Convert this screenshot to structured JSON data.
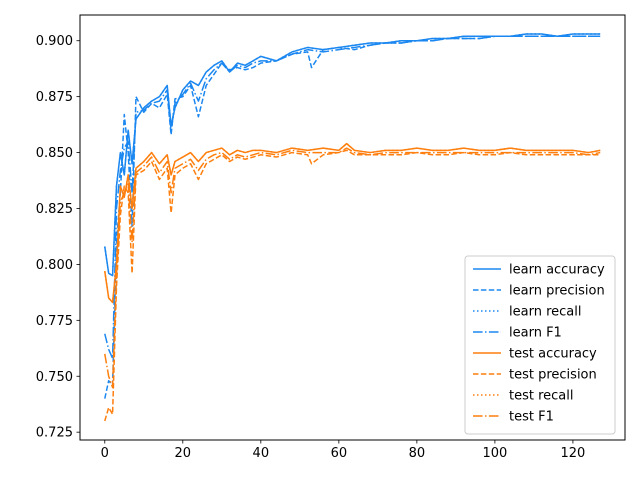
{
  "chart_data": {
    "type": "line",
    "title": "",
    "xlabel": "",
    "ylabel": "",
    "xlim": [
      -6.35,
      133.35
    ],
    "ylim": [
      0.7215,
      0.9115
    ],
    "xticks": [
      0,
      20,
      40,
      60,
      80,
      100,
      120
    ],
    "yticks": [
      0.725,
      0.75,
      0.775,
      0.8,
      0.825,
      0.85,
      0.875,
      0.9
    ],
    "grid": false,
    "legend_position": "lower-right",
    "colors": {
      "learn": "#1b87f0",
      "test": "#ff7f0e"
    },
    "series": [
      {
        "name": "learn accuracy",
        "group": "learn",
        "dash": "solid",
        "x": [
          0,
          1,
          2,
          3,
          4,
          5,
          6,
          7,
          8,
          10,
          12,
          14,
          16,
          17,
          18,
          20,
          22,
          24,
          26,
          28,
          30,
          32,
          34,
          36,
          38,
          40,
          44,
          48,
          52,
          56,
          60,
          64,
          68,
          72,
          76,
          80,
          84,
          88,
          92,
          96,
          100,
          104,
          108,
          112,
          116,
          120,
          124,
          127
        ],
        "y": [
          0.808,
          0.796,
          0.795,
          0.835,
          0.85,
          0.84,
          0.86,
          0.845,
          0.865,
          0.87,
          0.873,
          0.875,
          0.88,
          0.862,
          0.87,
          0.878,
          0.882,
          0.88,
          0.886,
          0.889,
          0.891,
          0.886,
          0.89,
          0.889,
          0.891,
          0.893,
          0.891,
          0.895,
          0.897,
          0.896,
          0.897,
          0.898,
          0.899,
          0.899,
          0.9,
          0.9,
          0.901,
          0.901,
          0.902,
          0.902,
          0.902,
          0.902,
          0.903,
          0.903,
          0.902,
          0.903,
          0.903,
          0.903
        ]
      },
      {
        "name": "learn precision",
        "group": "learn",
        "dash": "dashed",
        "x": [
          0,
          1,
          2,
          3,
          4,
          5,
          6,
          7,
          8,
          10,
          12,
          14,
          16,
          17,
          18,
          20,
          22,
          24,
          26,
          28,
          30,
          32,
          34,
          36,
          38,
          40,
          44,
          48,
          52,
          53,
          56,
          60,
          64,
          68,
          72,
          76,
          80,
          84,
          88,
          92,
          96,
          100,
          104,
          108,
          112,
          116,
          120,
          124,
          127
        ],
        "y": [
          0.74,
          0.748,
          0.746,
          0.81,
          0.832,
          0.867,
          0.85,
          0.817,
          0.875,
          0.868,
          0.872,
          0.87,
          0.876,
          0.858,
          0.874,
          0.875,
          0.88,
          0.866,
          0.88,
          0.885,
          0.89,
          0.887,
          0.888,
          0.887,
          0.888,
          0.89,
          0.891,
          0.894,
          0.895,
          0.888,
          0.896,
          0.897,
          0.896,
          0.898,
          0.899,
          0.899,
          0.9,
          0.9,
          0.901,
          0.901,
          0.901,
          0.902,
          0.902,
          0.902,
          0.902,
          0.902,
          0.902,
          0.902,
          0.902
        ]
      },
      {
        "name": "learn recall",
        "group": "learn",
        "dash": "dotted",
        "x": [
          0,
          1,
          2,
          3,
          4,
          5,
          6,
          7,
          8,
          10,
          12,
          14,
          16,
          17,
          18,
          20,
          22,
          24,
          26,
          28,
          30,
          32,
          34,
          36,
          38,
          40,
          44,
          48,
          52,
          56,
          60,
          64,
          68,
          72,
          76,
          80,
          84,
          88,
          92,
          96,
          100,
          104,
          108,
          112,
          116,
          120,
          124,
          127
        ],
        "y": [
          0.808,
          0.796,
          0.795,
          0.835,
          0.85,
          0.84,
          0.86,
          0.845,
          0.865,
          0.87,
          0.873,
          0.875,
          0.88,
          0.862,
          0.87,
          0.878,
          0.882,
          0.88,
          0.886,
          0.889,
          0.891,
          0.886,
          0.89,
          0.889,
          0.891,
          0.893,
          0.891,
          0.895,
          0.897,
          0.896,
          0.897,
          0.898,
          0.899,
          0.899,
          0.9,
          0.9,
          0.901,
          0.901,
          0.902,
          0.902,
          0.902,
          0.902,
          0.903,
          0.903,
          0.902,
          0.903,
          0.903,
          0.903
        ]
      },
      {
        "name": "learn F1",
        "group": "learn",
        "dash": "dashdot",
        "x": [
          0,
          1,
          2,
          3,
          4,
          5,
          6,
          7,
          8,
          10,
          12,
          14,
          16,
          17,
          18,
          20,
          22,
          24,
          26,
          28,
          30,
          32,
          34,
          36,
          38,
          40,
          44,
          48,
          52,
          56,
          60,
          64,
          68,
          72,
          76,
          80,
          84,
          88,
          92,
          96,
          100,
          104,
          108,
          112,
          116,
          120,
          124,
          127
        ],
        "y": [
          0.769,
          0.762,
          0.758,
          0.825,
          0.842,
          0.852,
          0.855,
          0.832,
          0.868,
          0.869,
          0.872,
          0.873,
          0.878,
          0.86,
          0.872,
          0.876,
          0.881,
          0.873,
          0.883,
          0.887,
          0.89,
          0.886,
          0.889,
          0.888,
          0.89,
          0.891,
          0.891,
          0.894,
          0.896,
          0.895,
          0.896,
          0.897,
          0.898,
          0.899,
          0.899,
          0.9,
          0.9,
          0.901,
          0.901,
          0.901,
          0.902,
          0.902,
          0.902,
          0.902,
          0.902,
          0.902,
          0.902,
          0.902
        ]
      },
      {
        "name": "test accuracy",
        "group": "test",
        "dash": "solid",
        "x": [
          0,
          1,
          2,
          3,
          4,
          5,
          6,
          7,
          8,
          10,
          12,
          14,
          16,
          17,
          18,
          20,
          22,
          24,
          26,
          28,
          30,
          32,
          34,
          36,
          38,
          40,
          44,
          48,
          52,
          56,
          60,
          62,
          64,
          68,
          72,
          76,
          80,
          84,
          88,
          92,
          96,
          100,
          104,
          108,
          112,
          116,
          120,
          124,
          127
        ],
        "y": [
          0.797,
          0.785,
          0.783,
          0.8,
          0.835,
          0.83,
          0.84,
          0.825,
          0.843,
          0.846,
          0.85,
          0.845,
          0.849,
          0.84,
          0.846,
          0.848,
          0.85,
          0.846,
          0.85,
          0.851,
          0.852,
          0.849,
          0.851,
          0.85,
          0.851,
          0.851,
          0.85,
          0.852,
          0.851,
          0.852,
          0.851,
          0.854,
          0.851,
          0.85,
          0.851,
          0.851,
          0.852,
          0.851,
          0.851,
          0.852,
          0.851,
          0.851,
          0.852,
          0.851,
          0.851,
          0.851,
          0.851,
          0.85,
          0.851
        ]
      },
      {
        "name": "test precision",
        "group": "test",
        "dash": "dashed",
        "x": [
          0,
          1,
          2,
          3,
          4,
          5,
          6,
          7,
          8,
          10,
          12,
          14,
          16,
          17,
          18,
          20,
          22,
          24,
          26,
          28,
          30,
          32,
          34,
          36,
          38,
          40,
          44,
          48,
          52,
          53,
          56,
          60,
          62,
          64,
          68,
          72,
          76,
          80,
          84,
          88,
          92,
          96,
          100,
          104,
          108,
          112,
          116,
          120,
          124,
          127
        ],
        "y": [
          0.73,
          0.736,
          0.733,
          0.79,
          0.822,
          0.835,
          0.832,
          0.796,
          0.84,
          0.842,
          0.846,
          0.838,
          0.843,
          0.823,
          0.84,
          0.843,
          0.845,
          0.838,
          0.845,
          0.847,
          0.849,
          0.846,
          0.848,
          0.847,
          0.848,
          0.849,
          0.848,
          0.85,
          0.849,
          0.845,
          0.849,
          0.85,
          0.851,
          0.849,
          0.849,
          0.849,
          0.849,
          0.85,
          0.849,
          0.849,
          0.85,
          0.849,
          0.849,
          0.85,
          0.849,
          0.849,
          0.849,
          0.849,
          0.849,
          0.849
        ]
      },
      {
        "name": "test recall",
        "group": "test",
        "dash": "dotted",
        "x": [
          0,
          1,
          2,
          3,
          4,
          5,
          6,
          7,
          8,
          10,
          12,
          14,
          16,
          17,
          18,
          20,
          22,
          24,
          26,
          28,
          30,
          32,
          34,
          36,
          38,
          40,
          44,
          48,
          52,
          56,
          60,
          62,
          64,
          68,
          72,
          76,
          80,
          84,
          88,
          92,
          96,
          100,
          104,
          108,
          112,
          116,
          120,
          124,
          127
        ],
        "y": [
          0.797,
          0.785,
          0.783,
          0.8,
          0.835,
          0.83,
          0.84,
          0.825,
          0.843,
          0.846,
          0.85,
          0.845,
          0.849,
          0.84,
          0.846,
          0.848,
          0.85,
          0.846,
          0.85,
          0.851,
          0.852,
          0.849,
          0.851,
          0.85,
          0.851,
          0.851,
          0.85,
          0.852,
          0.851,
          0.852,
          0.851,
          0.854,
          0.851,
          0.85,
          0.851,
          0.851,
          0.852,
          0.851,
          0.851,
          0.852,
          0.851,
          0.851,
          0.852,
          0.851,
          0.851,
          0.851,
          0.851,
          0.85,
          0.851
        ]
      },
      {
        "name": "test F1",
        "group": "test",
        "dash": "dashdot",
        "x": [
          0,
          1,
          2,
          3,
          4,
          5,
          6,
          7,
          8,
          10,
          12,
          14,
          16,
          17,
          18,
          20,
          22,
          24,
          26,
          28,
          30,
          32,
          34,
          36,
          38,
          40,
          44,
          48,
          52,
          56,
          60,
          62,
          64,
          68,
          72,
          76,
          80,
          84,
          88,
          92,
          96,
          100,
          104,
          108,
          112,
          116,
          120,
          124,
          127
        ],
        "y": [
          0.76,
          0.75,
          0.745,
          0.795,
          0.828,
          0.832,
          0.836,
          0.81,
          0.841,
          0.844,
          0.848,
          0.841,
          0.846,
          0.832,
          0.843,
          0.845,
          0.847,
          0.842,
          0.847,
          0.849,
          0.85,
          0.847,
          0.849,
          0.848,
          0.849,
          0.85,
          0.849,
          0.851,
          0.85,
          0.85,
          0.85,
          0.852,
          0.85,
          0.849,
          0.85,
          0.85,
          0.85,
          0.85,
          0.85,
          0.85,
          0.85,
          0.85,
          0.85,
          0.85,
          0.85,
          0.85,
          0.85,
          0.849,
          0.85
        ]
      }
    ]
  }
}
